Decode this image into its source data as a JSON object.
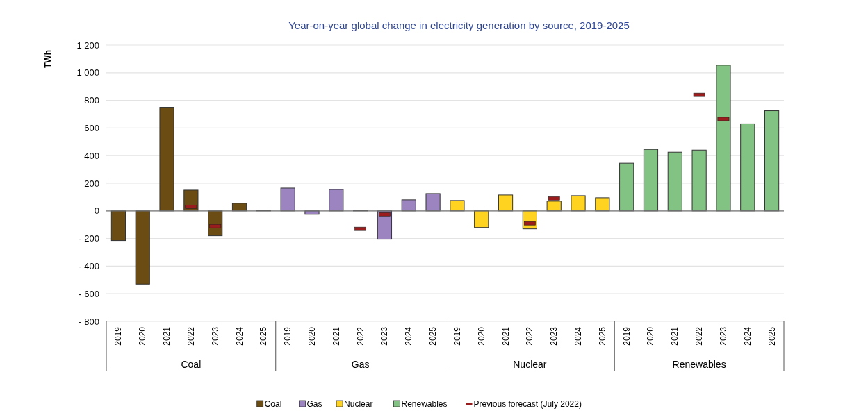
{
  "chart_data": {
    "type": "bar",
    "title": "Year-on-year global change in electricity generation by source, 2019-2025",
    "ylabel": "TWh",
    "categories": [
      "2019",
      "2020",
      "2021",
      "2022",
      "2023",
      "2024",
      "2025",
      "2019",
      "2020",
      "2021",
      "2022",
      "2023",
      "2024",
      "2025",
      "2019",
      "2020",
      "2021",
      "2022",
      "2023",
      "2024",
      "2025",
      "2019",
      "2020",
      "2021",
      "2022",
      "2023",
      "2024",
      "2025"
    ],
    "annotations": [
      "Coal",
      "Gas",
      "Nuclear",
      "Renewables"
    ],
    "series": [
      {
        "name": "Coal",
        "color": "#6b4c12",
        "values": [
          -215,
          -530,
          750,
          150,
          -180,
          55,
          5,
          null,
          null,
          null,
          null,
          null,
          null,
          null,
          null,
          null,
          null,
          null,
          null,
          null,
          null,
          null,
          null,
          null,
          null,
          null,
          null,
          null
        ]
      },
      {
        "name": "Gas",
        "color": "#9b84c0",
        "values": [
          null,
          null,
          null,
          null,
          null,
          null,
          null,
          165,
          -25,
          155,
          5,
          -205,
          80,
          125,
          null,
          null,
          null,
          null,
          null,
          null,
          null,
          null,
          null,
          null,
          null,
          null,
          null,
          null
        ]
      },
      {
        "name": "Nuclear",
        "color": "#ffd320",
        "values": [
          null,
          null,
          null,
          null,
          null,
          null,
          null,
          null,
          null,
          null,
          null,
          null,
          null,
          null,
          75,
          -120,
          115,
          -130,
          70,
          110,
          95,
          null,
          null,
          null,
          null,
          null,
          null,
          null
        ]
      },
      {
        "name": "Renewables",
        "color": "#82c282",
        "values": [
          null,
          null,
          null,
          null,
          null,
          null,
          null,
          null,
          null,
          null,
          null,
          null,
          null,
          null,
          null,
          null,
          null,
          null,
          null,
          null,
          null,
          345,
          445,
          425,
          440,
          1055,
          630,
          725
        ]
      },
      {
        "name": "Previous forecast (July 2022)",
        "type": "scatter",
        "color": "#9b1c1c",
        "values": [
          null,
          null,
          null,
          30,
          -110,
          null,
          null,
          null,
          null,
          null,
          -130,
          -25,
          null,
          null,
          null,
          null,
          null,
          -90,
          90,
          null,
          null,
          null,
          null,
          null,
          840,
          665,
          null,
          null
        ]
      }
    ],
    "ylim": [
      -800,
      1200
    ],
    "yticks": [
      {
        "value": -800,
        "label": "- 800"
      },
      {
        "value": -600,
        "label": "- 600"
      },
      {
        "value": -400,
        "label": "- 400"
      },
      {
        "value": -200,
        "label": "- 200"
      },
      0,
      200,
      400,
      600,
      800,
      {
        "value": 1000,
        "label": "1 000"
      },
      {
        "value": 1200,
        "label": "1 200"
      }
    ],
    "grid": "y",
    "legend": "bottom"
  }
}
